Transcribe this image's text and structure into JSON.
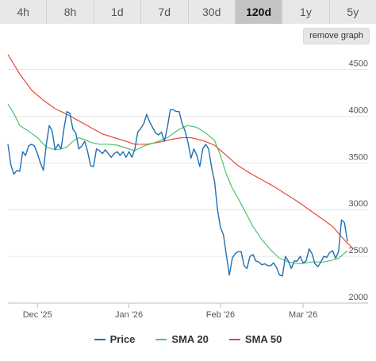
{
  "tabs": [
    {
      "label": "4h"
    },
    {
      "label": "8h"
    },
    {
      "label": "1d"
    },
    {
      "label": "7d"
    },
    {
      "label": "30d"
    },
    {
      "label": "120d",
      "active": true
    },
    {
      "label": "1y"
    },
    {
      "label": "5y"
    }
  ],
  "remove_graph_label": "remove graph",
  "colors": {
    "price": "#1f6fb2",
    "sma20": "#4cc36a",
    "sma50": "#e8473b"
  },
  "chart_data": {
    "type": "line",
    "ylim": [
      2000,
      4700
    ],
    "y_ticks": [
      2000,
      2500,
      3000,
      3500,
      4000,
      4500
    ],
    "x_ticks": [
      {
        "label": "Dec '25",
        "day": 10
      },
      {
        "label": "Jan '26",
        "day": 41
      },
      {
        "label": "Feb '26",
        "day": 72
      },
      {
        "label": "Mar '26",
        "day": 100
      }
    ],
    "x_range": [
      0,
      122
    ],
    "series": [
      {
        "name": "Price",
        "key": "price",
        "points": [
          [
            0,
            3700
          ],
          [
            1,
            3480
          ],
          [
            2,
            3380
          ],
          [
            3,
            3420
          ],
          [
            4,
            3410
          ],
          [
            5,
            3620
          ],
          [
            6,
            3580
          ],
          [
            7,
            3680
          ],
          [
            8,
            3700
          ],
          [
            9,
            3680
          ],
          [
            10,
            3600
          ],
          [
            11,
            3500
          ],
          [
            12,
            3420
          ],
          [
            13,
            3700
          ],
          [
            14,
            3900
          ],
          [
            15,
            3840
          ],
          [
            16,
            3640
          ],
          [
            17,
            3700
          ],
          [
            18,
            3650
          ],
          [
            19,
            3870
          ],
          [
            20,
            4050
          ],
          [
            21,
            4030
          ],
          [
            22,
            3860
          ],
          [
            23,
            3820
          ],
          [
            24,
            3650
          ],
          [
            25,
            3680
          ],
          [
            26,
            3730
          ],
          [
            27,
            3620
          ],
          [
            28,
            3470
          ],
          [
            29,
            3460
          ],
          [
            30,
            3650
          ],
          [
            31,
            3630
          ],
          [
            32,
            3600
          ],
          [
            33,
            3640
          ],
          [
            34,
            3600
          ],
          [
            35,
            3560
          ],
          [
            36,
            3600
          ],
          [
            37,
            3620
          ],
          [
            38,
            3580
          ],
          [
            39,
            3620
          ],
          [
            40,
            3560
          ],
          [
            41,
            3620
          ],
          [
            42,
            3560
          ],
          [
            43,
            3650
          ],
          [
            44,
            3830
          ],
          [
            45,
            3870
          ],
          [
            46,
            3920
          ],
          [
            47,
            4020
          ],
          [
            48,
            3940
          ],
          [
            49,
            3880
          ],
          [
            50,
            3820
          ],
          [
            51,
            3800
          ],
          [
            52,
            3830
          ],
          [
            53,
            3730
          ],
          [
            54,
            3880
          ],
          [
            55,
            4070
          ],
          [
            56,
            4070
          ],
          [
            57,
            4050
          ],
          [
            58,
            4050
          ],
          [
            59,
            3920
          ],
          [
            60,
            3840
          ],
          [
            61,
            3720
          ],
          [
            62,
            3550
          ],
          [
            63,
            3650
          ],
          [
            64,
            3580
          ],
          [
            65,
            3460
          ],
          [
            66,
            3650
          ],
          [
            67,
            3700
          ],
          [
            68,
            3650
          ],
          [
            69,
            3450
          ],
          [
            70,
            3300
          ],
          [
            71,
            3000
          ],
          [
            72,
            2810
          ],
          [
            73,
            2730
          ],
          [
            74,
            2510
          ],
          [
            75,
            2300
          ],
          [
            76,
            2480
          ],
          [
            77,
            2530
          ],
          [
            78,
            2550
          ],
          [
            79,
            2550
          ],
          [
            80,
            2400
          ],
          [
            81,
            2370
          ],
          [
            82,
            2500
          ],
          [
            83,
            2520
          ],
          [
            84,
            2450
          ],
          [
            85,
            2440
          ],
          [
            86,
            2410
          ],
          [
            87,
            2420
          ],
          [
            88,
            2400
          ],
          [
            89,
            2400
          ],
          [
            90,
            2430
          ],
          [
            91,
            2380
          ],
          [
            92,
            2300
          ],
          [
            93,
            2290
          ],
          [
            94,
            2500
          ],
          [
            95,
            2450
          ],
          [
            96,
            2370
          ],
          [
            97,
            2450
          ],
          [
            98,
            2450
          ],
          [
            99,
            2500
          ],
          [
            100,
            2430
          ],
          [
            101,
            2450
          ],
          [
            102,
            2580
          ],
          [
            103,
            2530
          ],
          [
            104,
            2420
          ],
          [
            105,
            2390
          ],
          [
            106,
            2440
          ],
          [
            107,
            2500
          ],
          [
            108,
            2490
          ],
          [
            109,
            2540
          ],
          [
            110,
            2560
          ],
          [
            111,
            2480
          ],
          [
            112,
            2550
          ],
          [
            113,
            2890
          ],
          [
            114,
            2860
          ],
          [
            115,
            2660
          ]
        ]
      },
      {
        "name": "SMA 20",
        "key": "sma20",
        "points": [
          [
            0,
            4130
          ],
          [
            2,
            4030
          ],
          [
            4,
            3900
          ],
          [
            7,
            3840
          ],
          [
            10,
            3770
          ],
          [
            13,
            3670
          ],
          [
            16,
            3640
          ],
          [
            18,
            3650
          ],
          [
            20,
            3670
          ],
          [
            22,
            3730
          ],
          [
            24,
            3770
          ],
          [
            26,
            3750
          ],
          [
            28,
            3720
          ],
          [
            31,
            3700
          ],
          [
            34,
            3700
          ],
          [
            37,
            3690
          ],
          [
            40,
            3660
          ],
          [
            43,
            3630
          ],
          [
            46,
            3680
          ],
          [
            50,
            3720
          ],
          [
            54,
            3770
          ],
          [
            58,
            3860
          ],
          [
            61,
            3900
          ],
          [
            64,
            3880
          ],
          [
            67,
            3820
          ],
          [
            70,
            3740
          ],
          [
            72,
            3580
          ],
          [
            74,
            3380
          ],
          [
            76,
            3230
          ],
          [
            78,
            3120
          ],
          [
            80,
            3000
          ],
          [
            83,
            2820
          ],
          [
            86,
            2680
          ],
          [
            89,
            2570
          ],
          [
            92,
            2480
          ],
          [
            95,
            2440
          ],
          [
            99,
            2420
          ],
          [
            103,
            2440
          ],
          [
            107,
            2440
          ],
          [
            110,
            2460
          ],
          [
            112,
            2480
          ],
          [
            115,
            2560
          ]
        ]
      },
      {
        "name": "SMA 50",
        "key": "sma50",
        "points": [
          [
            0,
            4660
          ],
          [
            4,
            4450
          ],
          [
            8,
            4280
          ],
          [
            12,
            4170
          ],
          [
            16,
            4080
          ],
          [
            20,
            4020
          ],
          [
            24,
            3950
          ],
          [
            28,
            3880
          ],
          [
            32,
            3810
          ],
          [
            36,
            3770
          ],
          [
            40,
            3730
          ],
          [
            43,
            3700
          ],
          [
            47,
            3700
          ],
          [
            51,
            3720
          ],
          [
            55,
            3750
          ],
          [
            59,
            3770
          ],
          [
            62,
            3770
          ],
          [
            66,
            3740
          ],
          [
            70,
            3690
          ],
          [
            74,
            3580
          ],
          [
            78,
            3470
          ],
          [
            82,
            3390
          ],
          [
            86,
            3320
          ],
          [
            90,
            3250
          ],
          [
            94,
            3170
          ],
          [
            98,
            3090
          ],
          [
            102,
            3000
          ],
          [
            106,
            2910
          ],
          [
            110,
            2820
          ],
          [
            113,
            2710
          ],
          [
            115,
            2640
          ],
          [
            117,
            2580
          ]
        ]
      }
    ]
  }
}
